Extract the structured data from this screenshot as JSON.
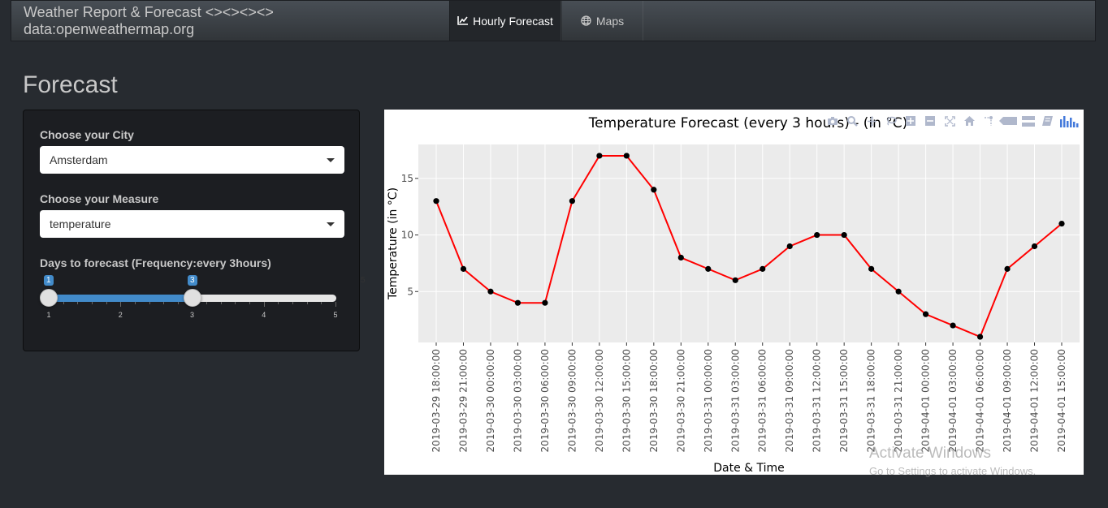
{
  "navbar": {
    "brand": "Weather Report & Forecast <><><><> data:openweathermap.org",
    "tabs": [
      {
        "label": "Hourly Forecast",
        "icon": "line-chart-icon",
        "active": true
      },
      {
        "label": "Maps",
        "icon": "globe-icon",
        "active": false
      }
    ]
  },
  "page": {
    "title": "Forecast"
  },
  "sidebar": {
    "city_label": "Choose your City",
    "city_value": "Amsterdam",
    "measure_label": "Choose your Measure",
    "measure_value": "temperature",
    "days_label": "Days to forecast (Frequency:every 3hours)",
    "slider": {
      "min": 1,
      "max": 5,
      "from": 1,
      "to": 3,
      "min_label": "1",
      "max_label": "5",
      "from_label": "1",
      "to_label": "3",
      "ticks": [
        "1",
        "2",
        "3",
        "4",
        "5"
      ]
    }
  },
  "chart_data": {
    "type": "line",
    "title": "Temperature Forecast (every 3 hours) - (in °C)",
    "xlabel": "Date & Time",
    "ylabel": "Temperature (in °C)",
    "line_color": "#ff0000",
    "point_color": "#000000",
    "background": "#ebebeb",
    "ylim": [
      0.5,
      18.0
    ],
    "yticks": [
      5,
      10,
      15
    ],
    "x": [
      "2019-03-29 18:00:00",
      "2019-03-29 21:00:00",
      "2019-03-30 00:00:00",
      "2019-03-30 03:00:00",
      "2019-03-30 06:00:00",
      "2019-03-30 09:00:00",
      "2019-03-30 12:00:00",
      "2019-03-30 15:00:00",
      "2019-03-30 18:00:00",
      "2019-03-30 21:00:00",
      "2019-03-31 00:00:00",
      "2019-03-31 03:00:00",
      "2019-03-31 06:00:00",
      "2019-03-31 09:00:00",
      "2019-03-31 12:00:00",
      "2019-03-31 15:00:00",
      "2019-03-31 18:00:00",
      "2019-03-31 21:00:00",
      "2019-04-01 00:00:00",
      "2019-04-01 03:00:00",
      "2019-04-01 06:00:00",
      "2019-04-01 09:00:00",
      "2019-04-01 12:00:00",
      "2019-04-01 15:00:00"
    ],
    "y": [
      13,
      7,
      5,
      4,
      4,
      13,
      17,
      17,
      14,
      8,
      7,
      6,
      7,
      9,
      10,
      10,
      7,
      5,
      3,
      2,
      1,
      7,
      9,
      11
    ]
  },
  "modebar": [
    "camera-icon",
    "zoom-icon",
    "pan-icon",
    "lasso-icon",
    "zoom-in-icon",
    "zoom-out-icon",
    "autoscale-icon",
    "home-icon",
    "spike-lines-icon",
    "hover-closest-icon",
    "hover-compare-icon",
    "edit-chart-icon",
    "plotly-logo-icon"
  ],
  "watermark": {
    "line1": "Activate Windows",
    "line2": "Go to Settings to activate Windows."
  }
}
